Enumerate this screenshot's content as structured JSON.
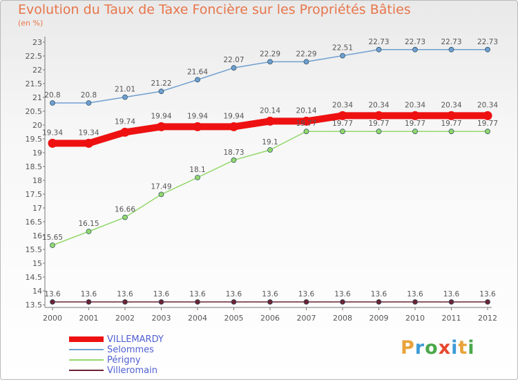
{
  "title": "Evolution du Taux de Taxe Foncière sur les Propriétés Bâties",
  "subtitle": "(en %)",
  "brand": {
    "letters": [
      "P",
      "r",
      "o",
      "x",
      "i",
      "t",
      "i"
    ],
    "colors": [
      "#e8a33a",
      "#3d9bd8",
      "#4aa84a",
      "#e7492d",
      "#3d9bd8",
      "#e8a33a",
      "#4aa84a"
    ]
  },
  "chart_data": {
    "type": "line",
    "title": "Evolution du Taux de Taxe Foncière sur les Propriétés Bâties",
    "ylabel": "(en %)",
    "x": [
      "2000",
      "2001",
      "2002",
      "2003",
      "2004",
      "2005",
      "2006",
      "2007",
      "2008",
      "2009",
      "2010",
      "2011",
      "2012"
    ],
    "ylim": [
      13.5,
      23
    ],
    "yticks": [
      "13.5",
      "14",
      "14.5",
      "15",
      "15.5",
      "16",
      "16.5",
      "17",
      "17.5",
      "18",
      "18.5",
      "19",
      "19.5",
      "20",
      "20.5",
      "21",
      "21.5",
      "22",
      "22.5",
      "23"
    ],
    "grid": false,
    "legend": "bottom-left",
    "series": [
      {
        "name": "VILLEMARDY",
        "color": "#ee1111",
        "values": [
          19.34,
          19.34,
          19.74,
          19.94,
          19.94,
          19.94,
          20.14,
          20.14,
          20.34,
          20.34,
          20.34,
          20.34,
          20.34
        ],
        "labels": [
          "19.34",
          "19.34",
          "19.74",
          "19.94",
          "19.94",
          "19.94",
          "20.14",
          "20.14",
          "20.34",
          "20.34",
          "20.34",
          "20.34",
          "20.34"
        ]
      },
      {
        "name": "Selommes",
        "color": "#6f9fd0",
        "values": [
          20.8,
          20.8,
          21.01,
          21.22,
          21.64,
          22.07,
          22.29,
          22.29,
          22.51,
          22.73,
          22.73,
          22.73,
          22.73
        ],
        "labels": [
          "20.8",
          "20.8",
          "21.01",
          "21.22",
          "21.64",
          "22.07",
          "22.29",
          "22.29",
          "22.51",
          "22.73",
          "22.73",
          "22.73",
          "22.73"
        ]
      },
      {
        "name": "Périgny",
        "color": "#93d86a",
        "values": [
          15.65,
          16.15,
          16.66,
          17.49,
          18.1,
          18.73,
          19.1,
          19.77,
          19.77,
          19.77,
          19.77,
          19.77,
          19.77
        ],
        "labels": [
          "15.65",
          "16.15",
          "16.66",
          "17.49",
          "18.1",
          "18.73",
          "19.1",
          "19.77",
          "19.77",
          "19.77",
          "19.77",
          "19.77",
          "19.77"
        ]
      },
      {
        "name": "Villeromain",
        "color": "#6b2230",
        "values": [
          13.6,
          13.6,
          13.6,
          13.6,
          13.6,
          13.6,
          13.6,
          13.6,
          13.6,
          13.6,
          13.6,
          13.6,
          13.6
        ],
        "labels": [
          "13.6",
          "13.6",
          "13.6",
          "13.6",
          "13.6",
          "13.6",
          "13.6",
          "13.6",
          "13.6",
          "13.6",
          "13.6",
          "13.6",
          "13.6"
        ]
      }
    ]
  }
}
